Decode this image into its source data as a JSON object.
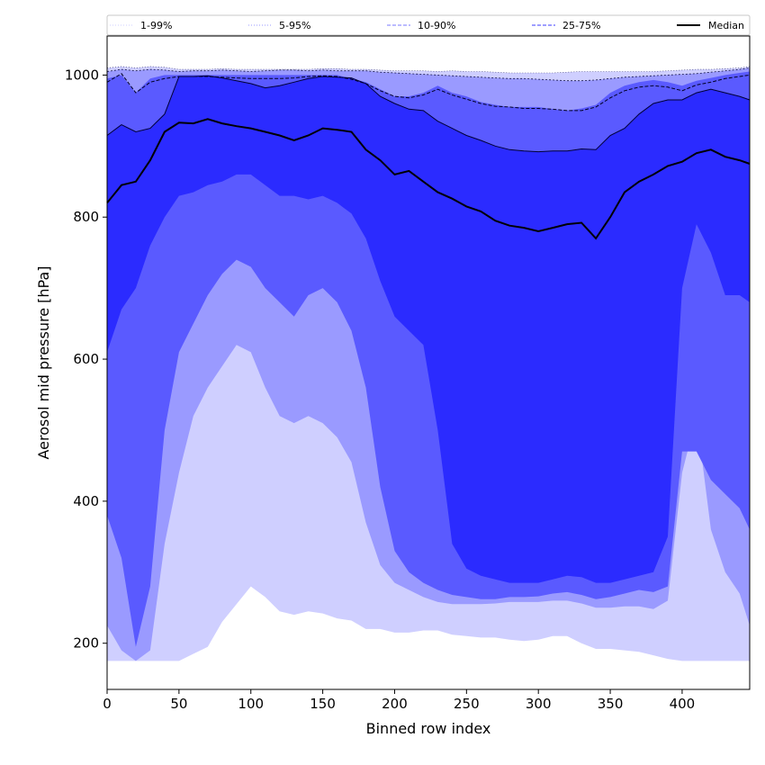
{
  "chart_data": {
    "type": "area",
    "title": "",
    "xlabel": "Binned row index",
    "ylabel": "Aerosol mid pressure [hPa]",
    "xlim": [
      0,
      447
    ],
    "ylim": [
      135,
      1055
    ],
    "xticks": [
      0,
      50,
      100,
      150,
      200,
      250,
      300,
      350,
      400
    ],
    "yticks": [
      200,
      400,
      600,
      800,
      1000
    ],
    "legend": {
      "placement": "top",
      "entries": [
        {
          "label": "1-99%",
          "color": "#cfcfff",
          "style": "dotted"
        },
        {
          "label": "5-95%",
          "color": "#9a9aff",
          "style": "dotted"
        },
        {
          "label": "10-90%",
          "color": "#7a7aff",
          "style": "dashed"
        },
        {
          "label": "25-75%",
          "color": "#3c3cff",
          "style": "dashed"
        },
        {
          "label": "Median",
          "color": "#000000",
          "style": "solid"
        }
      ]
    },
    "x": [
      0,
      10,
      20,
      30,
      40,
      50,
      60,
      70,
      80,
      90,
      100,
      110,
      120,
      130,
      140,
      150,
      160,
      170,
      180,
      190,
      200,
      210,
      220,
      230,
      240,
      250,
      260,
      270,
      280,
      290,
      300,
      310,
      320,
      330,
      340,
      350,
      360,
      370,
      380,
      390,
      400,
      410,
      420,
      430,
      440,
      447
    ],
    "series": [
      {
        "name": "Median",
        "values": [
          820,
          845,
          850,
          880,
          920,
          933,
          932,
          938,
          932,
          928,
          925,
          920,
          915,
          908,
          915,
          925,
          923,
          920,
          895,
          880,
          860,
          865,
          850,
          835,
          826,
          815,
          808,
          795,
          788,
          785,
          780,
          785,
          790,
          792,
          770,
          800,
          835,
          850,
          860,
          872,
          878,
          890,
          895,
          885,
          880,
          875
        ]
      },
      {
        "name": "p1",
        "values": [
          175,
          175,
          175,
          175,
          175,
          175,
          185,
          195,
          230,
          255,
          280,
          265,
          245,
          240,
          245,
          242,
          235,
          232,
          220,
          220,
          215,
          215,
          218,
          218,
          212,
          210,
          208,
          208,
          205,
          203,
          205,
          210,
          210,
          200,
          192,
          192,
          190,
          188,
          183,
          178,
          175,
          175,
          175,
          175,
          175,
          175
        ]
      },
      {
        "name": "p99",
        "values": [
          1010,
          1012,
          1010,
          1012,
          1011,
          1008,
          1008,
          1008,
          1009,
          1008,
          1008,
          1008,
          1008,
          1008,
          1008,
          1009,
          1009,
          1008,
          1008,
          1007,
          1006,
          1006,
          1006,
          1005,
          1006,
          1005,
          1005,
          1004,
          1003,
          1003,
          1003,
          1003,
          1004,
          1005,
          1005,
          1005,
          1005,
          1005,
          1005,
          1006,
          1007,
          1008,
          1008,
          1009,
          1010,
          1012
        ]
      },
      {
        "name": "p5",
        "values": [
          225,
          190,
          175,
          190,
          340,
          440,
          520,
          560,
          590,
          620,
          610,
          560,
          520,
          510,
          520,
          510,
          490,
          455,
          370,
          310,
          285,
          275,
          265,
          258,
          255,
          255,
          255,
          256,
          258,
          258,
          258,
          260,
          260,
          256,
          250,
          250,
          252,
          252,
          248,
          260,
          440,
          520,
          360,
          300,
          270,
          225
        ]
      },
      {
        "name": "p95",
        "values": [
          1005,
          1008,
          1006,
          1008,
          1007,
          1005,
          1006,
          1006,
          1007,
          1006,
          1005,
          1006,
          1007,
          1007,
          1006,
          1007,
          1006,
          1006,
          1006,
          1004,
          1003,
          1002,
          1001,
          1000,
          999,
          998,
          997,
          996,
          995,
          995,
          994,
          993,
          992,
          992,
          993,
          995,
          997,
          998,
          999,
          1000,
          1001,
          1002,
          1004,
          1006,
          1008,
          1010
        ]
      },
      {
        "name": "p10",
        "values": [
          380,
          320,
          195,
          280,
          500,
          610,
          650,
          690,
          720,
          740,
          730,
          700,
          680,
          660,
          690,
          700,
          680,
          640,
          560,
          420,
          330,
          300,
          285,
          275,
          268,
          265,
          262,
          262,
          265,
          265,
          266,
          270,
          272,
          268,
          262,
          265,
          270,
          275,
          272,
          280,
          470,
          470,
          430,
          410,
          390,
          360
        ]
      },
      {
        "name": "p90",
        "values": [
          995,
          1000,
          975,
          995,
          1000,
          1000,
          1000,
          1000,
          1000,
          1000,
          1000,
          1000,
          1000,
          1000,
          1000,
          1000,
          1000,
          995,
          990,
          980,
          970,
          970,
          975,
          985,
          975,
          970,
          962,
          958,
          955,
          955,
          955,
          952,
          950,
          953,
          958,
          975,
          985,
          990,
          993,
          990,
          985,
          992,
          996,
          1000,
          1003,
          1005
        ]
      },
      {
        "name": "p25",
        "values": [
          610,
          670,
          700,
          760,
          800,
          830,
          835,
          845,
          850,
          860,
          860,
          845,
          830,
          830,
          825,
          830,
          820,
          805,
          770,
          710,
          660,
          640,
          620,
          500,
          340,
          305,
          295,
          290,
          285,
          285,
          285,
          290,
          295,
          293,
          285,
          285,
          290,
          295,
          300,
          350,
          700,
          790,
          750,
          690,
          690,
          680
        ]
      },
      {
        "name": "p75",
        "values": [
          915,
          930,
          920,
          925,
          945,
          998,
          998,
          999,
          996,
          992,
          988,
          982,
          985,
          990,
          995,
          998,
          997,
          996,
          988,
          970,
          960,
          952,
          950,
          935,
          925,
          915,
          908,
          900,
          895,
          893,
          892,
          893,
          893,
          896,
          895,
          915,
          925,
          945,
          960,
          965,
          965,
          975,
          980,
          975,
          970,
          965
        ]
      },
      {
        "name": "p90_line",
        "values": [
          990,
          1002,
          975,
          990,
          995,
          998,
          998,
          998,
          997,
          996,
          995,
          995,
          995,
          996,
          998,
          999,
          998,
          994,
          988,
          978,
          970,
          968,
          972,
          980,
          972,
          966,
          960,
          956,
          955,
          953,
          953,
          952,
          950,
          950,
          955,
          968,
          978,
          983,
          985,
          983,
          978,
          986,
          990,
          995,
          998,
          1000
        ]
      }
    ]
  }
}
